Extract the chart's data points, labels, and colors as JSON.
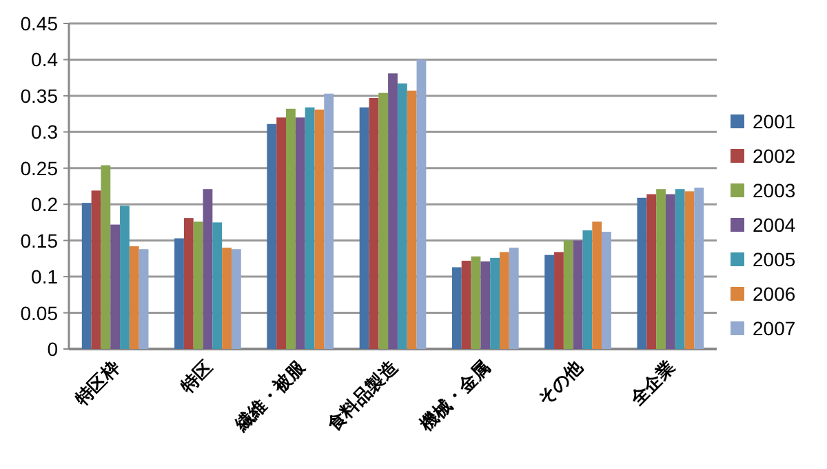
{
  "chart_data": {
    "type": "bar",
    "categories": [
      "特区枠",
      "特区",
      "繊維・被服",
      "食料品製造",
      "機械・金属",
      "その他",
      "全企業"
    ],
    "series": [
      {
        "name": "2001",
        "color": "#4572a7",
        "values": [
          0.202,
          0.153,
          0.311,
          0.334,
          0.113,
          0.13,
          0.209
        ]
      },
      {
        "name": "2002",
        "color": "#aa4643",
        "values": [
          0.219,
          0.181,
          0.32,
          0.347,
          0.122,
          0.134,
          0.214
        ]
      },
      {
        "name": "2003",
        "color": "#89a54e",
        "values": [
          0.254,
          0.176,
          0.332,
          0.354,
          0.128,
          0.15,
          0.221
        ]
      },
      {
        "name": "2004",
        "color": "#71588f",
        "values": [
          0.172,
          0.221,
          0.32,
          0.381,
          0.121,
          0.15,
          0.214
        ]
      },
      {
        "name": "2005",
        "color": "#4198af",
        "values": [
          0.198,
          0.175,
          0.334,
          0.367,
          0.126,
          0.164,
          0.221
        ]
      },
      {
        "name": "2006",
        "color": "#db843d",
        "values": [
          0.142,
          0.14,
          0.331,
          0.357,
          0.134,
          0.176,
          0.218
        ]
      },
      {
        "name": "2007",
        "color": "#93a9cf",
        "values": [
          0.138,
          0.138,
          0.353,
          0.4,
          0.14,
          0.162,
          0.223
        ]
      }
    ],
    "ylim": [
      0,
      0.45
    ],
    "yticks": [
      0,
      0.05,
      0.1,
      0.15,
      0.2,
      0.25,
      0.3,
      0.35,
      0.4,
      0.45
    ],
    "grid": "y",
    "legend": "right"
  }
}
